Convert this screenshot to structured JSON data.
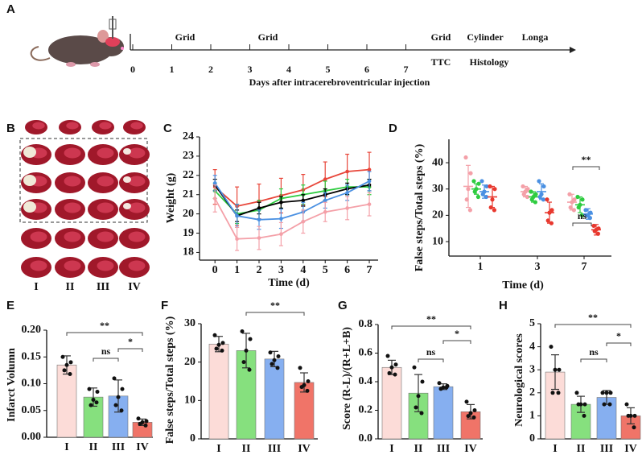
{
  "timeline": {
    "panel_label": "A",
    "days": [
      0,
      1,
      2,
      3,
      4,
      5,
      6,
      7
    ],
    "axis_label": "Days after intracerebroventricular injection",
    "above": [
      "Grid",
      "Grid",
      "Grid",
      "Cylinder",
      "Longa"
    ],
    "below": [
      "TTC",
      "Histology"
    ]
  },
  "image_panel": {
    "panel_label": "B",
    "labels": [
      "I",
      "II",
      "III",
      "IV"
    ]
  },
  "chart_data": [
    {
      "type": "line",
      "panel_label": "C",
      "x_label": "Time (d)",
      "y_label": "Weight (g)",
      "x": [
        0,
        1,
        2,
        3,
        4,
        5,
        6,
        7
      ],
      "xlim": [
        -0.7,
        7.4
      ],
      "xticks": [
        0,
        1,
        2,
        3,
        4,
        5,
        6,
        7
      ],
      "ylim": [
        17.6,
        24
      ],
      "yticks": [
        18,
        19,
        20,
        21,
        22,
        23,
        24
      ],
      "series": [
        {
          "color": "#e8463a",
          "values": [
            21.4,
            20.4,
            20.65,
            20.95,
            21.25,
            21.8,
            22.2,
            22.3
          ],
          "errors": [
            0.9,
            1.0,
            0.9,
            0.9,
            0.8,
            0.9,
            0.9,
            0.9
          ]
        },
        {
          "color": "#2ecc40",
          "values": [
            21.2,
            20.0,
            20.2,
            20.8,
            21.0,
            21.2,
            21.4,
            21.4
          ],
          "errors": [
            0.4,
            0.5,
            0.5,
            0.5,
            0.5,
            0.5,
            0.4,
            0.4
          ]
        },
        {
          "color": "#000000",
          "values": [
            21.5,
            19.9,
            20.3,
            20.6,
            20.7,
            21.0,
            21.3,
            21.5
          ],
          "errors": [
            0.3,
            0.3,
            0.3,
            0.3,
            0.3,
            0.3,
            0.3,
            0.3
          ]
        },
        {
          "color": "#4a90e2",
          "values": [
            21.6,
            19.9,
            19.7,
            19.75,
            20.1,
            20.7,
            21.1,
            21.7
          ],
          "errors": [
            0.4,
            0.6,
            0.5,
            0.5,
            0.5,
            0.4,
            0.4,
            0.5
          ]
        },
        {
          "color": "#f4a0a8",
          "values": [
            20.8,
            18.7,
            18.75,
            18.95,
            19.6,
            20.1,
            20.3,
            20.5
          ],
          "errors": [
            0.7,
            0.6,
            0.6,
            0.6,
            0.6,
            0.5,
            0.6,
            0.6
          ]
        }
      ]
    },
    {
      "type": "strip",
      "panel_label": "D",
      "x_label": "Time (d)",
      "y_label": "False steps/Total steps (%)",
      "categories": [
        "1",
        "3",
        "7"
      ],
      "ylim": [
        4.5,
        48.9
      ],
      "yticks": [
        10,
        20,
        30,
        40
      ],
      "annotations": [
        "**",
        "ns"
      ],
      "series": [
        {
          "color": "#f4a0a8",
          "values": [
            31,
            29,
            25
          ],
          "errors": [
            8,
            2,
            3
          ],
          "points": [
            [
              42,
              36,
              30,
              26,
              22
            ],
            [
              31,
              30,
              29,
              28,
              27
            ],
            [
              28,
              26,
              25,
              23,
              22
            ]
          ]
        },
        {
          "color": "#2ecc40",
          "values": [
            30,
            27,
            24
          ],
          "errors": [
            2,
            2,
            3
          ],
          "points": [
            [
              33,
              32,
              30,
              29,
              27
            ],
            [
              29,
              28,
              27,
              26,
              25
            ],
            [
              27,
              26,
              24,
              23,
              20
            ]
          ]
        },
        {
          "color": "#4a90e2",
          "values": [
            29,
            29,
            20.5
          ],
          "errors": [
            2.5,
            3,
            2
          ],
          "points": [
            [
              33,
              31,
              29,
              28,
              27
            ],
            [
              33,
              31,
              28,
              27,
              26
            ],
            [
              22,
              21,
              20,
              20,
              19
            ]
          ]
        },
        {
          "color": "#e8382e",
          "values": [
            27,
            21,
            14.5
          ],
          "errors": [
            4,
            4,
            2
          ],
          "points": [
            [
              31,
              30,
              26,
              23,
              22
            ],
            [
              26,
              22,
              21,
              18,
              17
            ],
            [
              16,
              15,
              14.5,
              14,
              13
            ]
          ]
        }
      ]
    },
    {
      "type": "bar",
      "panel_label": "E",
      "y_label": "Infarct Volumn",
      "categories": [
        "I",
        "II",
        "III",
        "IV"
      ],
      "ylim": [
        0,
        0.2
      ],
      "yticks": [
        {
          "value": 0,
          "label": "0.00"
        },
        {
          "value": 0.05,
          "label": "0.05"
        },
        {
          "value": 0.1,
          "label": "0.10"
        },
        {
          "value": 0.15,
          "label": "0.15"
        },
        {
          "value": 0.2,
          "label": "0.20"
        }
      ],
      "values": [
        0.135,
        0.075,
        0.077,
        0.028
      ],
      "errors": [
        0.017,
        0.017,
        0.03,
        0.006
      ],
      "points": [
        [
          0.15,
          0.14,
          0.135,
          0.125,
          0.118
        ],
        [
          0.09,
          0.085,
          0.07,
          0.06,
          0.065
        ],
        [
          0.11,
          0.09,
          0.075,
          0.06,
          0.05
        ],
        [
          0.035,
          0.03,
          0.028,
          0.025,
          0.022
        ]
      ],
      "colors": [
        "#fcdcd8",
        "#86e07e",
        "#86aff0",
        "#f07468"
      ],
      "annotations": [
        "**",
        "ns",
        "*"
      ]
    },
    {
      "type": "bar",
      "panel_label": "F",
      "y_label": "False steps/Total steps (%)",
      "categories": [
        "I",
        "II",
        "III",
        "IV"
      ],
      "ylim": [
        0,
        30
      ],
      "yticks": [
        0,
        10,
        20,
        30
      ],
      "values": [
        24.7,
        23,
        20.8,
        14.7
      ],
      "errors": [
        2,
        4.5,
        2,
        2.5
      ],
      "points": [
        [
          27,
          25,
          24.5,
          23.5,
          23
        ],
        [
          28,
          26,
          23,
          20,
          18
        ],
        [
          22.5,
          21.5,
          20.5,
          19.5,
          18.5
        ],
        [
          18.5,
          15,
          14,
          13.5,
          12.5
        ]
      ],
      "colors": [
        "#fcdcd8",
        "#86e07e",
        "#86aff0",
        "#f07468"
      ],
      "annotations": [
        "**"
      ]
    },
    {
      "type": "bar",
      "panel_label": "G",
      "y_label": "Score (R-L)/(R+L+B)",
      "categories": [
        "I",
        "II",
        "III",
        "IV"
      ],
      "ylim": [
        0,
        0.8
      ],
      "yticks": [
        {
          "value": 0,
          "label": "0.0"
        },
        {
          "value": 0.2,
          "label": "0.2"
        },
        {
          "value": 0.4,
          "label": "0.4"
        },
        {
          "value": 0.6,
          "label": "0.6"
        },
        {
          "value": 0.8,
          "label": "0.8"
        }
      ],
      "values": [
        0.5,
        0.32,
        0.365,
        0.19
      ],
      "errors": [
        0.05,
        0.13,
        0.02,
        0.05
      ],
      "points": [
        [
          0.58,
          0.52,
          0.5,
          0.46,
          0.45
        ],
        [
          0.5,
          0.4,
          0.3,
          0.22,
          0.18
        ],
        [
          0.39,
          0.37,
          0.36,
          0.35,
          0.36
        ],
        [
          0.26,
          0.2,
          0.18,
          0.16,
          0.15
        ]
      ],
      "colors": [
        "#fcdcd8",
        "#86e07e",
        "#86aff0",
        "#f07468"
      ],
      "annotations": [
        "**",
        "ns",
        "*"
      ]
    },
    {
      "type": "bar",
      "panel_label": "H",
      "y_label": "Neurological scores",
      "categories": [
        "I",
        "II",
        "III",
        "IV"
      ],
      "ylim": [
        0,
        5
      ],
      "yticks": [
        0,
        1,
        2,
        3,
        4,
        5
      ],
      "values": [
        2.9,
        1.5,
        1.8,
        1.0
      ],
      "errors": [
        0.75,
        0.35,
        0.3,
        0.35
      ],
      "points": [
        [
          4,
          3,
          3,
          2,
          2
        ],
        [
          2,
          1.5,
          1.5,
          1.5,
          1
        ],
        [
          2,
          2,
          2,
          1.5,
          1.5
        ],
        [
          1.5,
          1,
          1,
          1,
          0.5
        ]
      ],
      "colors": [
        "#fcdcd8",
        "#86e07e",
        "#86aff0",
        "#f07468"
      ],
      "annotations": [
        "**",
        "ns",
        "*"
      ]
    }
  ]
}
